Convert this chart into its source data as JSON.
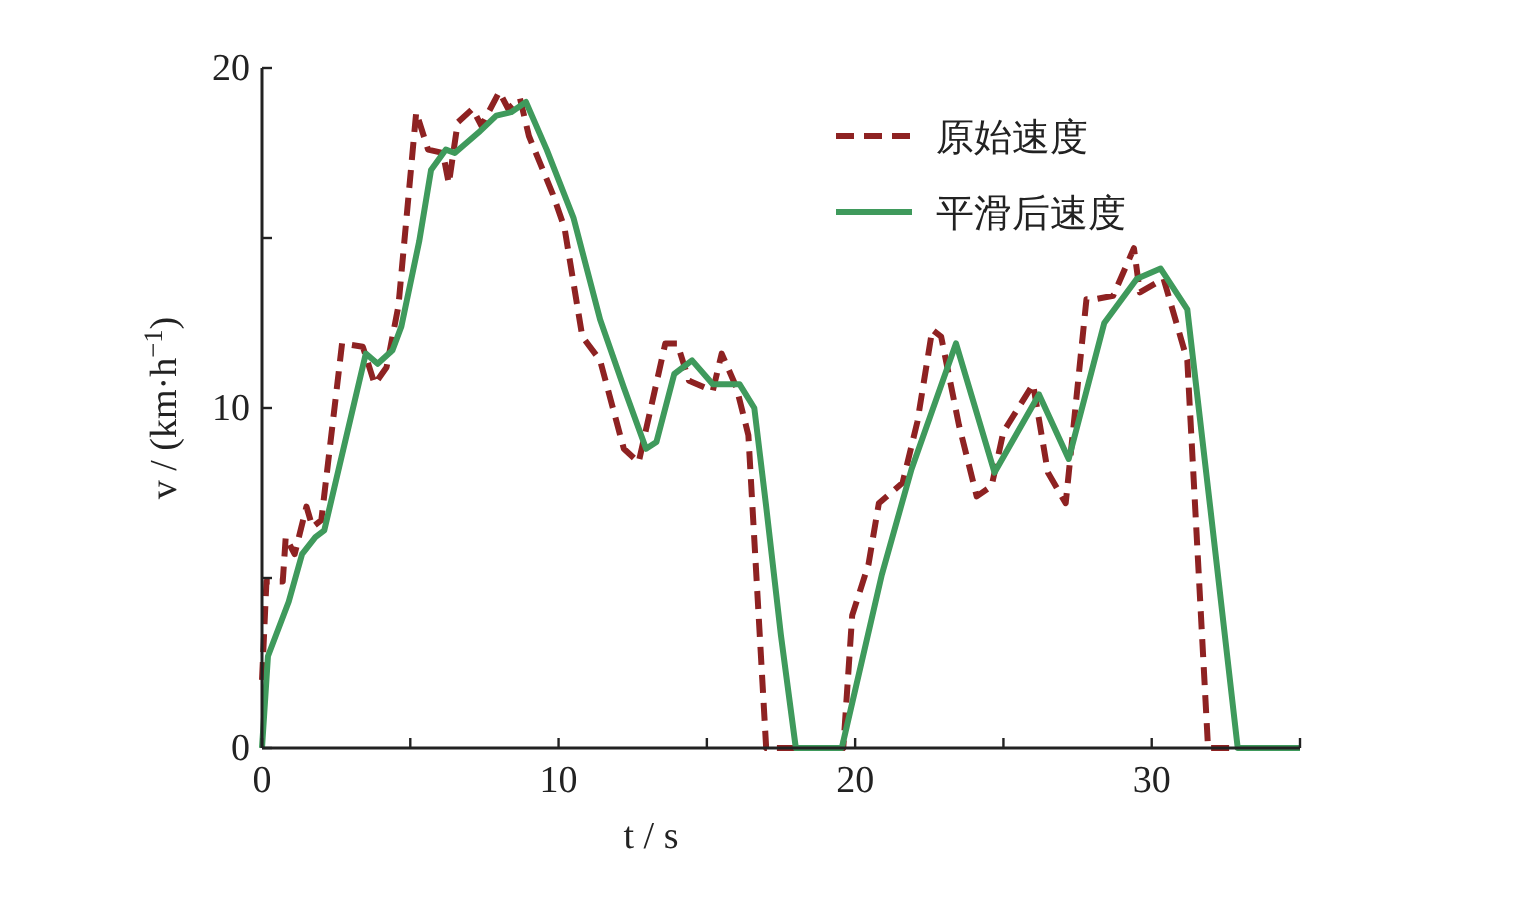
{
  "chart_data": {
    "type": "line",
    "xlabel": "t / s",
    "ylabel": "v / (km·h$^{−1}$)",
    "xlim": [
      0,
      35
    ],
    "ylim": [
      0,
      20
    ],
    "xticks": [
      0,
      {
        "value": 5,
        "label": null
      },
      10,
      {
        "value": 15,
        "label": null
      },
      20,
      {
        "value": 25,
        "label": null
      },
      30,
      {
        "value": 35,
        "label": null
      }
    ],
    "yticks": [
      0,
      {
        "value": 5,
        "label": null
      },
      10,
      {
        "value": 15,
        "label": null
      },
      20
    ],
    "legend": "top right",
    "series": [
      {
        "name": "原始速度",
        "color": "#8e2222",
        "line_style": "dashed",
        "x": [
          0,
          0.15,
          0.7,
          0.8,
          1.1,
          1.5,
          1.7,
          2.0,
          2.7,
          3.4,
          3.8,
          4.2,
          4.6,
          5.2,
          5.6,
          6.1,
          6.3,
          6.6,
          7.1,
          7.4,
          8.0,
          8.3,
          8.7,
          9.0,
          9.8,
          10.2,
          10.8,
          11.4,
          12.2,
          12.7,
          13.6,
          14.0,
          14.4,
          15.2,
          15.5,
          16.0,
          16.4,
          17.0,
          19.6,
          19.9,
          20.45,
          20.8,
          21.6,
          22.1,
          22.6,
          22.9,
          23.5,
          24.1,
          24.6,
          25.0,
          26.0,
          26.5,
          27.1,
          27.8,
          28.1,
          28.7,
          29.4,
          29.6,
          30.4,
          31.2,
          31.9,
          35
        ],
        "values": [
          2,
          4.9,
          4.9,
          6.2,
          5.7,
          7.1,
          6.5,
          6.7,
          11.9,
          11.8,
          10.7,
          11.2,
          13,
          18.7,
          17.6,
          17.5,
          16.6,
          18.4,
          18.8,
          18.3,
          19.3,
          18.8,
          19.1,
          18.0,
          16.3,
          15.3,
          12.1,
          11.4,
          8.8,
          8.4,
          11.9,
          11.9,
          10.8,
          10.5,
          11.6,
          10.6,
          9.2,
          0,
          0,
          3.9,
          5.4,
          7.2,
          7.8,
          9.6,
          12.3,
          12.1,
          9.5,
          7.4,
          7.7,
          9.3,
          10.7,
          8.1,
          7.2,
          13.2,
          13.2,
          13.3,
          14.7,
          13.4,
          13.8,
          11.4,
          0,
          0
        ]
      },
      {
        "name": "平滑后速度",
        "color": "#3f9a5c",
        "line_style": "solid",
        "x": [
          0,
          0.2,
          0.9,
          1.35,
          1.8,
          2.1,
          2.8,
          3.5,
          3.9,
          4.4,
          4.7,
          5.3,
          5.7,
          6.2,
          6.5,
          7.3,
          7.9,
          8.4,
          8.9,
          9.6,
          10.5,
          11.4,
          12.2,
          12.95,
          13.3,
          13.9,
          14.5,
          15.2,
          16.1,
          16.6,
          17.0,
          17.5,
          18.0,
          19.55,
          20.9,
          21.9,
          23.4,
          24.7,
          26.2,
          27.2,
          28.4,
          29.5,
          30.3,
          31.2,
          31.97,
          32.9,
          35
        ],
        "values": [
          0,
          2.7,
          4.3,
          5.7,
          6.2,
          6.4,
          9.0,
          11.6,
          11.3,
          11.7,
          12.4,
          14.9,
          17.0,
          17.6,
          17.5,
          18.1,
          18.6,
          18.7,
          19.0,
          17.6,
          15.6,
          12.6,
          10.6,
          8.8,
          9.0,
          11.0,
          11.4,
          10.7,
          10.7,
          10.0,
          7.1,
          3.3,
          0,
          0,
          5.1,
          8.2,
          11.9,
          8.1,
          10.4,
          8.5,
          12.5,
          13.8,
          14.1,
          12.9,
          7.1,
          0,
          0
        ]
      }
    ]
  }
}
